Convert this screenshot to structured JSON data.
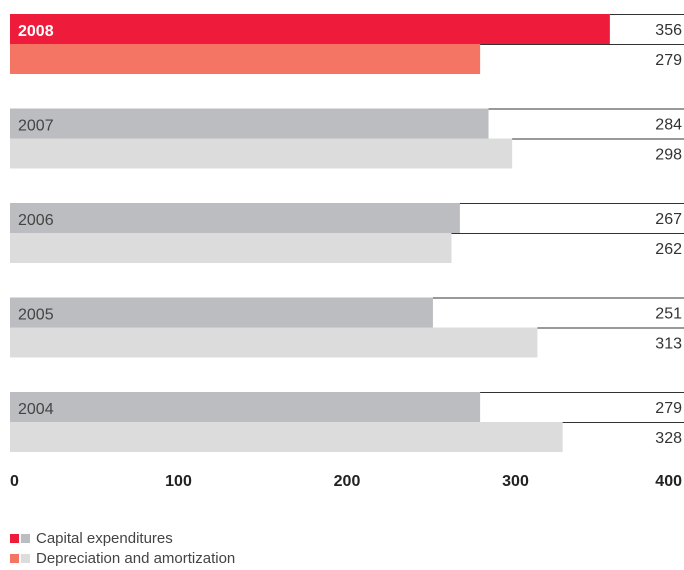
{
  "chart_data": {
    "type": "bar",
    "orientation": "horizontal",
    "categories": [
      "2008",
      "2007",
      "2006",
      "2005",
      "2004"
    ],
    "highlight_category": "2008",
    "series": [
      {
        "name": "Capital expenditures",
        "values": [
          356,
          284,
          267,
          251,
          279
        ]
      },
      {
        "name": "Depreciation and amortization",
        "values": [
          279,
          298,
          262,
          313,
          328
        ]
      }
    ],
    "xlim": [
      0,
      400
    ],
    "x_ticks": [
      "0",
      "100",
      "200",
      "300",
      "400"
    ],
    "grid": false,
    "legend_position": "bottom-left",
    "colors": {
      "highlight_capex": "#ee1c3a",
      "highlight_depreciation": "#f47564",
      "capex": "#bcbdc0",
      "depreciation": "#dcdcdd",
      "value_line": "#333333"
    }
  }
}
